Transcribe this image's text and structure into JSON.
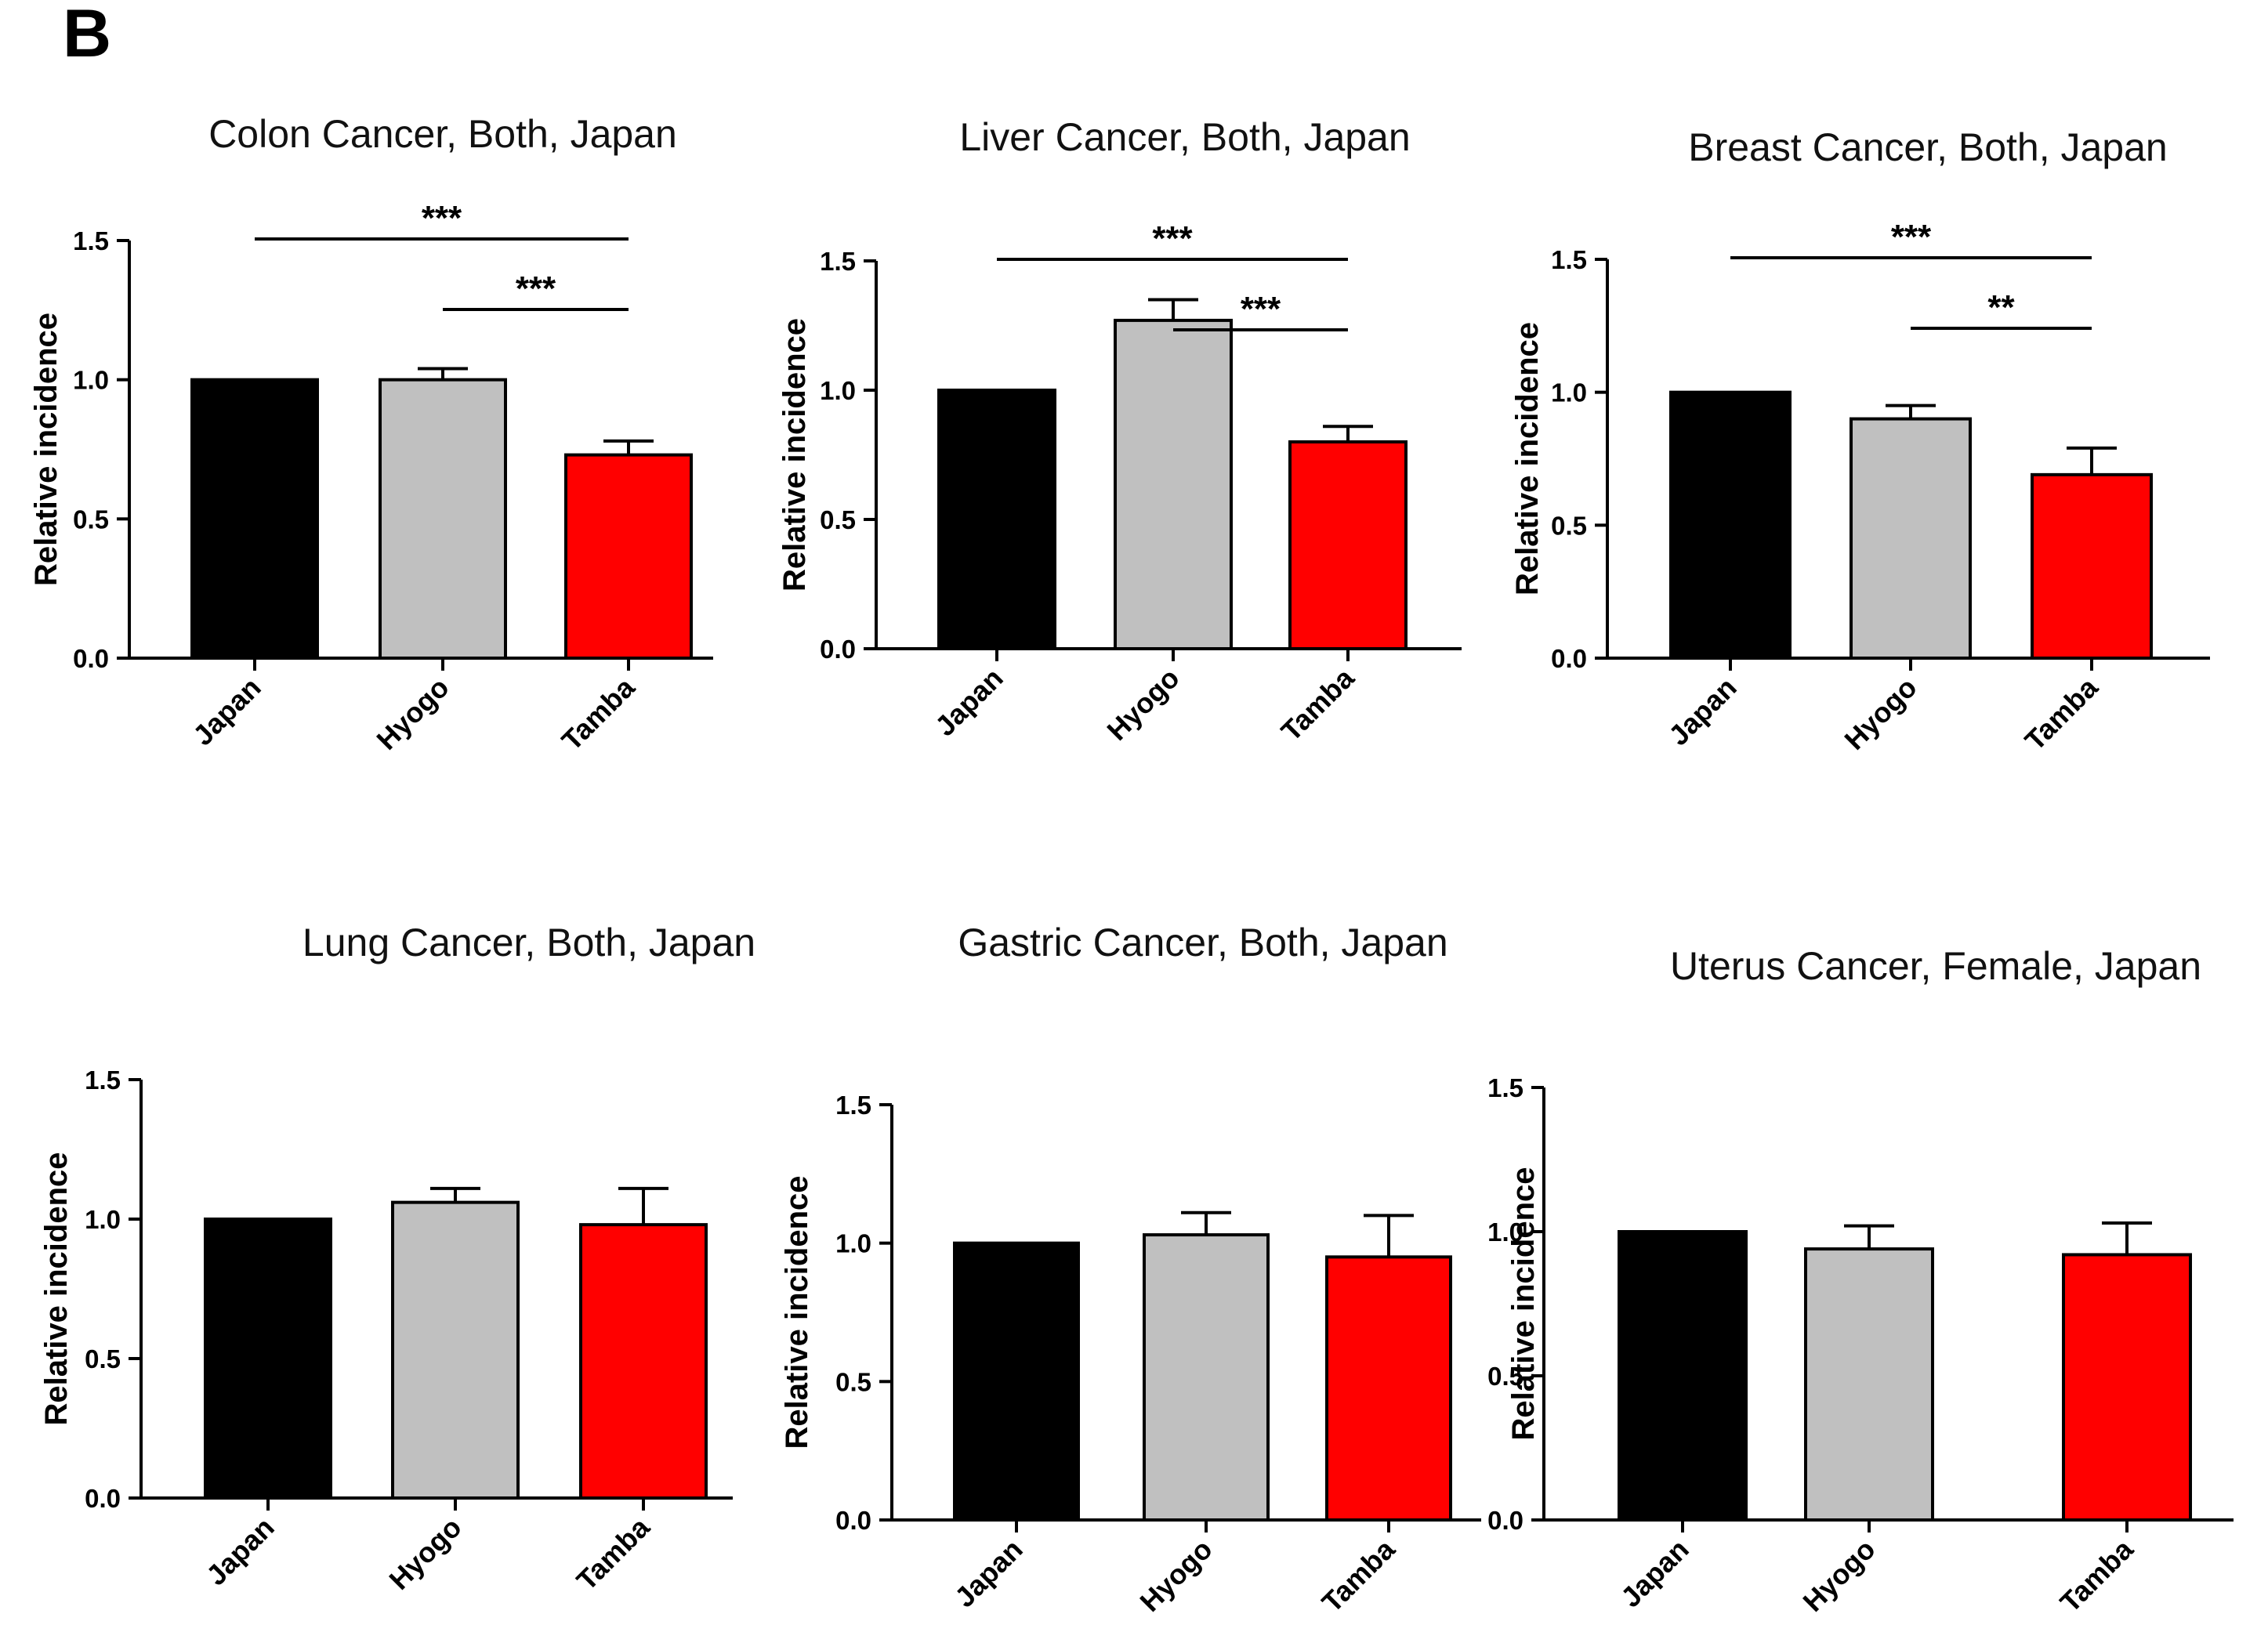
{
  "panel_label": "B",
  "colors": {
    "Japan": "#000000",
    "Hyogo": "#c0c0c0",
    "Tamba": "#ff0000"
  },
  "chart_data": [
    {
      "type": "bar",
      "title": "Colon Cancer, Both, Japan",
      "ylabel": "Relative incidence",
      "xlabel": "",
      "ylim": [
        0,
        1.5
      ],
      "yticks": [
        "0.0",
        "0.5",
        "1.0",
        "1.5"
      ],
      "categories": [
        "Japan",
        "Hyogo",
        "Tamba"
      ],
      "values": [
        1.0,
        1.0,
        0.73
      ],
      "errors": [
        0.0,
        0.04,
        0.05
      ],
      "significance": [
        {
          "from": "Japan",
          "to": "Tamba",
          "label": "***"
        },
        {
          "from": "Hyogo",
          "to": "Tamba",
          "label": "***"
        }
      ]
    },
    {
      "type": "bar",
      "title": "Liver Cancer, Both, Japan",
      "ylabel": "Relative incidence",
      "xlabel": "",
      "ylim": [
        0,
        1.5
      ],
      "yticks": [
        "0.0",
        "0.5",
        "1.0",
        "1.5"
      ],
      "categories": [
        "Japan",
        "Hyogo",
        "Tamba"
      ],
      "values": [
        1.0,
        1.27,
        0.8
      ],
      "errors": [
        0.0,
        0.08,
        0.06
      ],
      "significance": [
        {
          "from": "Japan",
          "to": "Tamba",
          "label": "***"
        },
        {
          "from": "Hyogo",
          "to": "Tamba",
          "label": "***"
        }
      ]
    },
    {
      "type": "bar",
      "title": "Breast Cancer, Both, Japan",
      "ylabel": "Relative incidence",
      "xlabel": "",
      "ylim": [
        0,
        1.5
      ],
      "yticks": [
        "0.0",
        "0.5",
        "1.0",
        "1.5"
      ],
      "categories": [
        "Japan",
        "Hyogo",
        "Tamba"
      ],
      "values": [
        1.0,
        0.9,
        0.69
      ],
      "errors": [
        0.0,
        0.05,
        0.1
      ],
      "significance": [
        {
          "from": "Japan",
          "to": "Tamba",
          "label": "***"
        },
        {
          "from": "Hyogo",
          "to": "Tamba",
          "label": "**"
        }
      ]
    },
    {
      "type": "bar",
      "title": "Lung  Cancer, Both, Japan",
      "ylabel": "Relative incidence",
      "xlabel": "",
      "ylim": [
        0,
        1.5
      ],
      "yticks": [
        "0.0",
        "0.5",
        "1.0",
        "1.5"
      ],
      "categories": [
        "Japan",
        "Hyogo",
        "Tamba"
      ],
      "values": [
        1.0,
        1.06,
        0.98
      ],
      "errors": [
        0.0,
        0.05,
        0.13
      ],
      "significance": []
    },
    {
      "type": "bar",
      "title": "Gastric Cancer, Both, Japan",
      "ylabel": "Relative incidence",
      "xlabel": "",
      "ylim": [
        0,
        1.5
      ],
      "yticks": [
        "0.0",
        "0.5",
        "1.0",
        "1.5"
      ],
      "categories": [
        "Japan",
        "Hyogo",
        "Tamba"
      ],
      "values": [
        1.0,
        1.03,
        0.95
      ],
      "errors": [
        0.0,
        0.08,
        0.15
      ],
      "significance": []
    },
    {
      "type": "bar",
      "title": "Uterus Cancer, Female, Japan",
      "ylabel": "Relative incidence",
      "xlabel": "",
      "ylim": [
        0,
        1.5
      ],
      "yticks": [
        "0.0",
        "0.5",
        "1.0",
        "1.5"
      ],
      "categories": [
        "Japan",
        "Hyogo",
        "Tamba"
      ],
      "values": [
        1.0,
        0.94,
        0.92
      ],
      "errors": [
        0.0,
        0.08,
        0.11
      ],
      "significance": []
    }
  ]
}
